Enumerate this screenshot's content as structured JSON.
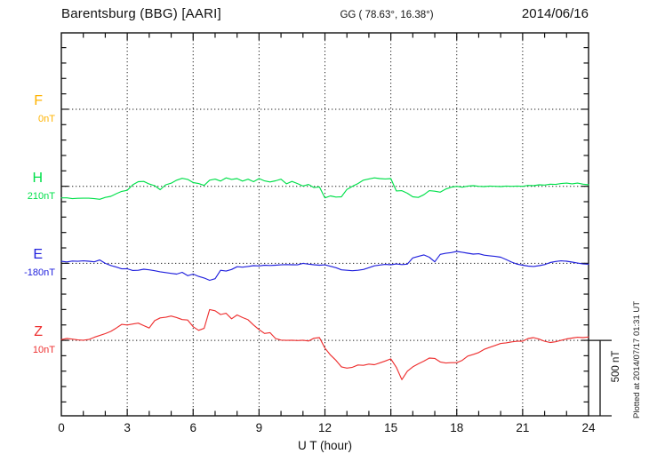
{
  "header": {
    "station": "Barentsburg (BBG)  [AARI]",
    "coords": "GG ( 78.63°,  16.38°)",
    "date": "2014/06/16"
  },
  "plotted_note": "Plotted at 2014/07/17 01:31 UT",
  "chart_data": {
    "type": "line",
    "title": "Barentsburg (BBG) [AARI] magnetogram 2014/06/16",
    "xlabel": "U T (hour)",
    "x_tick_labels": [
      "0",
      "3",
      "6",
      "9",
      "12",
      "15",
      "18",
      "21",
      "24"
    ],
    "x_range_hours": [
      0,
      24
    ],
    "x_start": 0,
    "x_step_hours": 0.25,
    "grid": "dotted vertical lines every 3 h; dotted horizontal line at each component baseline",
    "scale_bar_label": "500 nT",
    "scale_nT_per_division": 500,
    "values_are": "offset in nT from each component baseline value",
    "series": [
      {
        "id": "F",
        "label": "F",
        "baseline_label": "0nT",
        "baseline_nT": 0,
        "color": "#ffb300",
        "note": "no data plotted",
        "values": []
      },
      {
        "id": "H",
        "label": "H",
        "baseline_label": "210nT",
        "baseline_nT": 210,
        "color": "#00e04a",
        "values": [
          -75,
          -75,
          -80,
          -78,
          -77,
          -77,
          -80,
          -84,
          -72,
          -65,
          -48,
          -33,
          -26,
          10,
          30,
          32,
          15,
          4,
          -22,
          10,
          20,
          40,
          52,
          45,
          24,
          18,
          6,
          40,
          47,
          34,
          55,
          45,
          50,
          34,
          46,
          30,
          50,
          35,
          28,
          36,
          46,
          16,
          32,
          18,
          2,
          12,
          -8,
          -4,
          -75,
          -62,
          -70,
          -68,
          -20,
          0,
          18,
          40,
          48,
          55,
          50,
          48,
          50,
          -30,
          -28,
          -45,
          -68,
          -72,
          -55,
          -28,
          -32,
          -38,
          -18,
          -6,
          0,
          -6,
          2,
          4,
          0,
          -2,
          2,
          0,
          -2,
          2,
          0,
          2,
          0,
          6,
          4,
          10,
          8,
          14,
          12,
          18,
          21,
          16,
          21,
          14,
          10
        ]
      },
      {
        "id": "E",
        "label": "E",
        "baseline_label": "-180nT",
        "baseline_nT": -180,
        "color": "#2121dd",
        "values": [
          13,
          9,
          15,
          13,
          16,
          14,
          10,
          22,
          0,
          -14,
          -24,
          -36,
          -35,
          -46,
          -45,
          -38,
          -42,
          -48,
          -55,
          -60,
          -65,
          -70,
          -58,
          -80,
          -70,
          -85,
          -95,
          -110,
          -100,
          -45,
          -50,
          -40,
          -22,
          -25,
          -20,
          -15,
          -17,
          -12,
          -14,
          -12,
          -10,
          -8,
          -9,
          -10,
          0,
          -5,
          -9,
          -12,
          -10,
          -19,
          -28,
          -42,
          -45,
          -48,
          -45,
          -40,
          -28,
          -16,
          -11,
          -7,
          -9,
          -4,
          -8,
          -5,
          35,
          45,
          55,
          40,
          10,
          58,
          65,
          70,
          77,
          72,
          66,
          60,
          62,
          53,
          49,
          45,
          40,
          25,
          8,
          -5,
          -12,
          -18,
          -20,
          -15,
          -8,
          5,
          12,
          16,
          14,
          8,
          2,
          -4,
          -6
        ]
      },
      {
        "id": "Z",
        "label": "Z",
        "baseline_label": "10nT",
        "baseline_nT": 10,
        "color": "#ee3030",
        "values": [
          5,
          12,
          8,
          3,
          1,
          6,
          20,
          32,
          44,
          58,
          80,
          104,
          100,
          106,
          112,
          96,
          80,
          128,
          146,
          150,
          158,
          148,
          135,
          132,
          88,
          65,
          78,
          200,
          192,
          168,
          176,
          140,
          165,
          148,
          134,
          100,
          70,
          45,
          50,
          12,
          2,
          0,
          1,
          -1,
          1,
          -4,
          14,
          18,
          -50,
          -95,
          -130,
          -172,
          -180,
          -175,
          -160,
          -162,
          -154,
          -158,
          -146,
          -134,
          -120,
          -175,
          -255,
          -200,
          -172,
          -152,
          -135,
          -115,
          -117,
          -140,
          -147,
          -145,
          -145,
          -130,
          -102,
          -91,
          -79,
          -58,
          -45,
          -33,
          -20,
          -16,
          -10,
          -6,
          -5,
          12,
          18,
          8,
          -6,
          -14,
          -9,
          0,
          9,
          15,
          20,
          18,
          22
        ]
      }
    ]
  }
}
